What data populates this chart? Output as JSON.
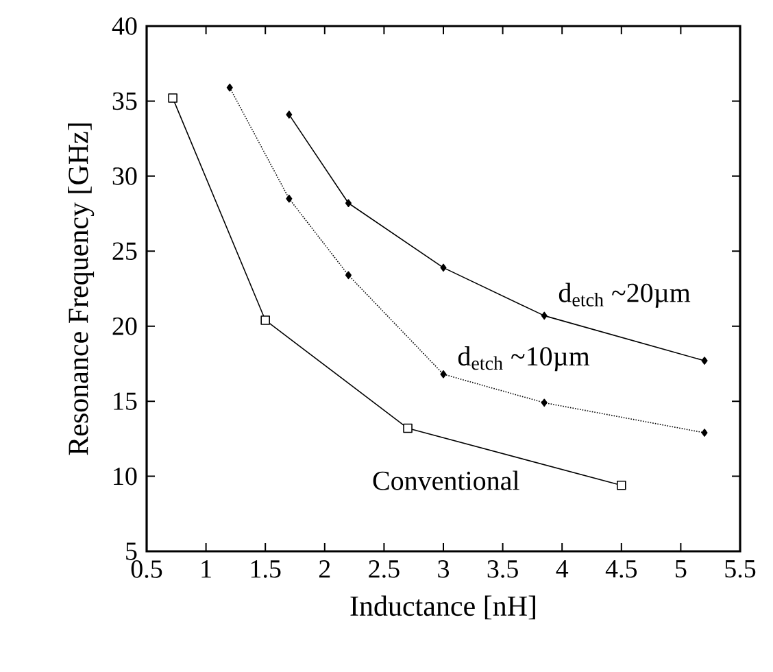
{
  "chart_data": {
    "type": "line",
    "xlabel": "Inductance [nH]",
    "ylabel": "Resonance Frequency [GHz]",
    "xlim": [
      0.5,
      5.5
    ],
    "xticks": [
      0.5,
      1,
      1.5,
      2,
      2.5,
      3,
      3.5,
      4,
      4.5,
      5,
      5.5
    ],
    "ylim": [
      5,
      40
    ],
    "yticks": [
      5,
      10,
      15,
      20,
      25,
      30,
      35,
      40
    ],
    "grid": false,
    "series": [
      {
        "name": "Conventional",
        "color": "#000000",
        "marker": "square",
        "line_style": "solid",
        "x": [
          0.72,
          1.5,
          2.7,
          4.5
        ],
        "values": [
          35.2,
          20.4,
          13.2,
          9.4
        ]
      },
      {
        "name": "d$_{etch}$ ~20µm",
        "color": "#000000",
        "marker": "diamond",
        "line_style": "solid",
        "x": [
          1.7,
          2.2,
          3.0,
          3.85,
          5.2
        ],
        "values": [
          34.1,
          28.2,
          23.9,
          20.7,
          17.7
        ]
      },
      {
        "name": "d$_{etch}$ ~10µm",
        "color": "#000000",
        "marker": "diamond",
        "line_style": "dotted",
        "x": [
          1.2,
          1.7,
          2.2,
          3.0,
          3.85,
          5.2
        ],
        "values": [
          35.9,
          28.5,
          23.4,
          16.8,
          14.9,
          12.9
        ]
      }
    ]
  }
}
